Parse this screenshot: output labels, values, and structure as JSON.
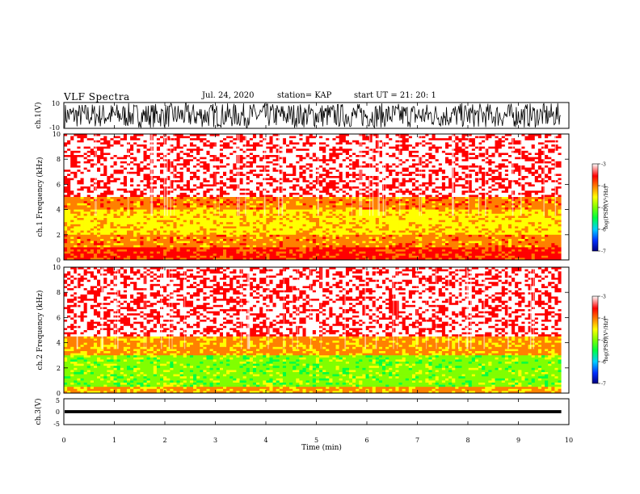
{
  "header": {
    "title": "VLF Spectra",
    "date": "Jul. 24, 2020",
    "station_label": "station= KAP",
    "start_label": "start UT =  21: 20: 1"
  },
  "colors": {
    "spectrum_scale": [
      "#000080",
      "#0030ff",
      "#00d0ff",
      "#00ff40",
      "#80ff00",
      "#ffff00",
      "#ff8000",
      "#ff0000",
      "#ffffff"
    ]
  },
  "chart_data": [
    {
      "type": "line",
      "name_label": "ch.1(V)",
      "yticks": [
        "10",
        "-10"
      ],
      "ylim": [
        -10,
        10
      ],
      "description_values": "noisy waveform clipping near ±10 V"
    },
    {
      "type": "heatmap",
      "ylabel": "ch.1 Frequency (kHz)",
      "yticks": [
        "0",
        "2",
        "4",
        "6",
        "8",
        "10"
      ],
      "ylim": [
        0,
        10
      ],
      "bands": [
        {
          "from": 0,
          "to": 1.0,
          "level": -3.6
        },
        {
          "from": 1.0,
          "to": 2.0,
          "level": -4.0
        },
        {
          "from": 2.0,
          "to": 4.0,
          "level": -4.4
        },
        {
          "from": 4.0,
          "to": 5.0,
          "level": -4.0
        },
        {
          "from": 5.0,
          "to": 10.0,
          "level": -3.2
        }
      ],
      "colorbar": {
        "label": "log(PSD)(V²/Hz)",
        "ticks": [
          "-3",
          "-4",
          "-5",
          "-6",
          "-7"
        ],
        "range": [
          -7,
          -3
        ]
      }
    },
    {
      "type": "heatmap",
      "ylabel": "ch.2 Frequency (kHz)",
      "yticks": [
        "0",
        "2",
        "4",
        "6",
        "8",
        "10"
      ],
      "ylim": [
        0,
        10
      ],
      "bands": [
        {
          "from": 0,
          "to": 0.5,
          "level": -4.1
        },
        {
          "from": 0.5,
          "to": 3.0,
          "level": -5.0
        },
        {
          "from": 3.0,
          "to": 4.5,
          "level": -4.1
        },
        {
          "from": 4.5,
          "to": 10.0,
          "level": -3.2
        }
      ],
      "colorbar": {
        "label": "log(PSD)(V²/Hz)",
        "ticks": [
          "-3",
          "-4",
          "-5",
          "-6",
          "-7"
        ],
        "range": [
          -7,
          -3
        ]
      }
    },
    {
      "type": "line",
      "name_label": "ch.3(V)",
      "yticks": [
        "5",
        "0",
        "-5"
      ],
      "ylim": [
        -5,
        5
      ],
      "xlabel": "Time (min)",
      "xticks": [
        "0",
        "1",
        "2",
        "3",
        "4",
        "5",
        "6",
        "7",
        "8",
        "9",
        "10"
      ],
      "xlim": [
        0,
        10
      ],
      "data_end_min": 9.85
    }
  ]
}
